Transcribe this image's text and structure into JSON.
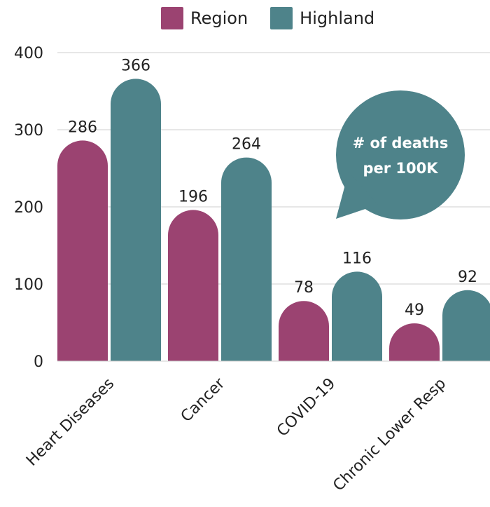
{
  "chart_data": {
    "type": "bar",
    "categories": [
      "Heart Diseases",
      "Cancer",
      "COVID-19",
      "Chronic Lower Resp"
    ],
    "series": [
      {
        "name": "Region",
        "values": [
          286,
          196,
          78,
          49
        ],
        "color": "#9b4371"
      },
      {
        "name": "Highland",
        "values": [
          366,
          264,
          116,
          92
        ],
        "color": "#4e838a"
      }
    ],
    "ylim": [
      0,
      400
    ],
    "yticks": [
      0,
      100,
      200,
      300,
      400
    ],
    "grid": true,
    "legend_position": "top",
    "annotation": {
      "line1": "# of deaths",
      "line2": "per 100K",
      "color": "#4e838a"
    }
  }
}
